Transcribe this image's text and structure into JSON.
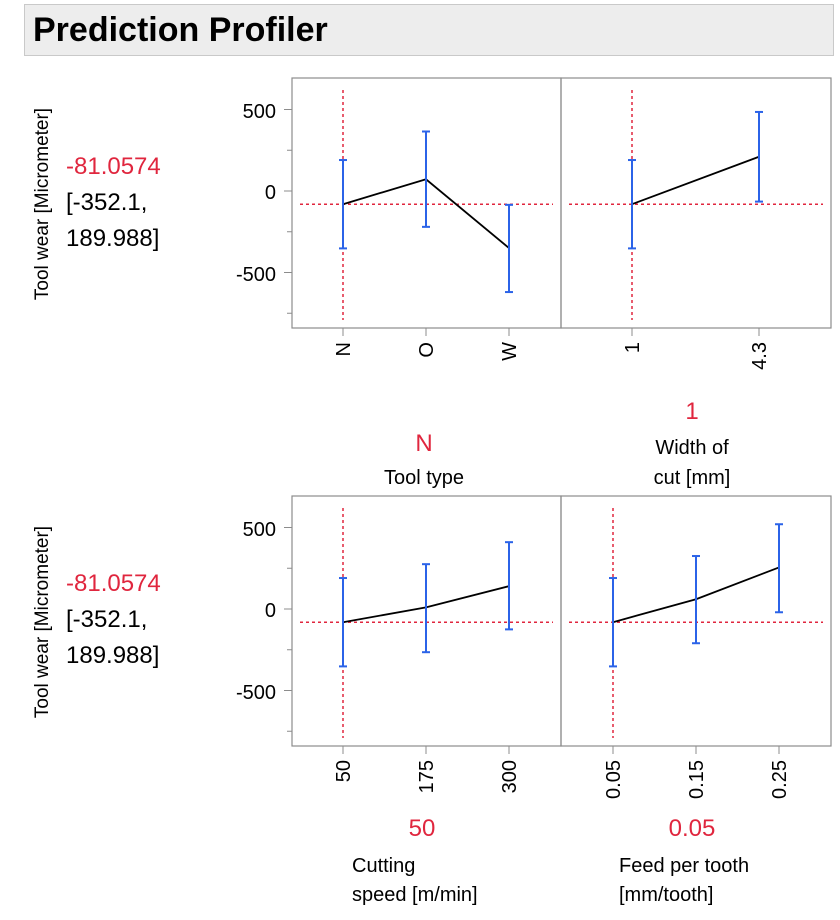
{
  "header": {
    "title": "Prediction Profiler"
  },
  "colors": {
    "accent_red": "#e0263e",
    "error_bar": "#2b63e8",
    "line": "#000000",
    "frame": "#8c8c8c"
  },
  "response": {
    "label": "Tool wear [Micrometer]",
    "value": "-81.0574",
    "ci_line1": "[-352.1,",
    "ci_line2": "189.988]"
  },
  "y_axis": {
    "ticks": [
      "500",
      "0",
      "-500"
    ]
  },
  "factors": [
    {
      "name_line1": "",
      "name_line2": "Tool type",
      "current": "N",
      "ticks": [
        "N",
        "O",
        "W"
      ]
    },
    {
      "name_line1": "Width of",
      "name_line2": "cut [mm]",
      "current": "1",
      "ticks": [
        "1",
        "4.3"
      ]
    },
    {
      "name_line1": "Cutting",
      "name_line2": "speed [m/min]",
      "current": "50",
      "ticks": [
        "50",
        "175",
        "300"
      ]
    },
    {
      "name_line1": "Feed per tooth",
      "name_line2": "[mm/tooth]",
      "current": "0.05",
      "ticks": [
        "0.05",
        "0.15",
        "0.25"
      ]
    }
  ],
  "chart_data": [
    {
      "type": "line",
      "title": "",
      "xlabel": "Tool type",
      "ylabel": "Tool wear [Micrometer]",
      "ylim": [
        -800,
        680
      ],
      "categories": [
        "N",
        "O",
        "W"
      ],
      "values": [
        -81.0574,
        72,
        -350
      ],
      "ci_low": [
        -352.1,
        -220,
        -620
      ],
      "ci_high": [
        189.988,
        365,
        -85
      ],
      "current_x": "N",
      "current_y": -81.0574
    },
    {
      "type": "line",
      "title": "",
      "xlabel": "Width of cut [mm]",
      "ylabel": "Tool wear [Micrometer]",
      "ylim": [
        -800,
        680
      ],
      "categories": [
        "1",
        "4.3"
      ],
      "values": [
        -81.0574,
        210
      ],
      "ci_low": [
        -352.1,
        -65
      ],
      "ci_high": [
        189.988,
        485
      ],
      "current_x": "1",
      "current_y": -81.0574
    },
    {
      "type": "line",
      "title": "",
      "xlabel": "Cutting speed [m/min]",
      "ylabel": "Tool wear [Micrometer]",
      "ylim": [
        -800,
        680
      ],
      "categories": [
        "50",
        "175",
        "300"
      ],
      "values": [
        -81.0574,
        10,
        140
      ],
      "ci_low": [
        -352.1,
        -265,
        -125
      ],
      "ci_high": [
        189.988,
        275,
        410
      ],
      "current_x": "50",
      "current_y": -81.0574
    },
    {
      "type": "line",
      "title": "",
      "xlabel": "Feed per tooth [mm/tooth]",
      "ylabel": "Tool wear [Micrometer]",
      "ylim": [
        -800,
        680
      ],
      "categories": [
        "0.05",
        "0.15",
        "0.25"
      ],
      "values": [
        -81.0574,
        60,
        255
      ],
      "ci_low": [
        -352.1,
        -210,
        -20
      ],
      "ci_high": [
        189.988,
        325,
        520
      ],
      "current_x": "0.05",
      "current_y": -81.0574
    }
  ]
}
